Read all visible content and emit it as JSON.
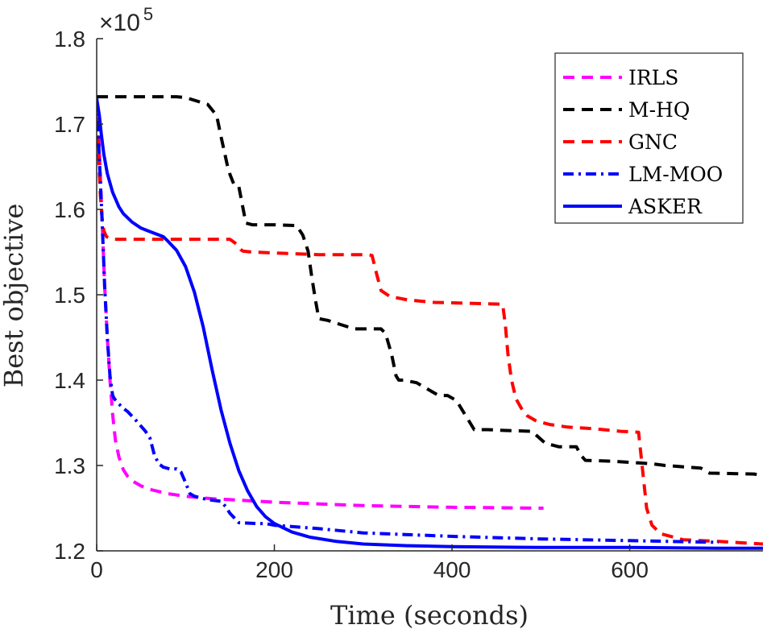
{
  "chart_data": {
    "type": "line",
    "title": "",
    "xlabel": "Time (seconds)",
    "ylabel": "Best objective",
    "xlim": [
      0,
      750
    ],
    "ylim": [
      120000,
      180000
    ],
    "xticks": [
      0,
      200,
      400,
      600
    ],
    "xtick_labels": [
      "0",
      "200",
      "400",
      "600"
    ],
    "yticks": [
      120000,
      130000,
      140000,
      150000,
      160000,
      170000,
      180000
    ],
    "ytick_labels": [
      "1.2",
      "1.3",
      "1.4",
      "1.5",
      "1.6",
      "1.7",
      "1.8"
    ],
    "y_multiplier": {
      "base": "×10",
      "exponent": "5"
    },
    "grid": false,
    "legend_position": "top-right",
    "series": [
      {
        "name": "IRLS",
        "color": "#ff00ff",
        "style": "dashed",
        "x": [
          0,
          3,
          6,
          9,
          12,
          15,
          18,
          21,
          25,
          30,
          35,
          40,
          50,
          60,
          80,
          100,
          130,
          150,
          200,
          300,
          400,
          503
        ],
        "y": [
          173000,
          167000,
          159000,
          151000,
          145000,
          140000,
          136000,
          133000,
          131000,
          129500,
          128700,
          128200,
          127600,
          127200,
          126700,
          126400,
          126100,
          126000,
          125700,
          125300,
          125100,
          125000
        ]
      },
      {
        "name": "M-HQ",
        "color": "#000000",
        "style": "dashed",
        "x": [
          0,
          90,
          100,
          125,
          135,
          140,
          147,
          150,
          155,
          160,
          165,
          168,
          175,
          200,
          225,
          232,
          238,
          242,
          246,
          250,
          260,
          275,
          290,
          320,
          325,
          332,
          337,
          340,
          345,
          360,
          385,
          395,
          405,
          415,
          418,
          425,
          440,
          460,
          490,
          505,
          520,
          540,
          545,
          550,
          580,
          610,
          625,
          640,
          680,
          690,
          740,
          750
        ],
        "y": [
          173200,
          173200,
          173100,
          172300,
          171000,
          168500,
          165200,
          164100,
          162800,
          162700,
          160000,
          158400,
          158200,
          158200,
          158100,
          157000,
          155100,
          152200,
          149500,
          147200,
          147000,
          146500,
          146000,
          146000,
          145500,
          143000,
          140500,
          140000,
          140000,
          139700,
          138200,
          138200,
          137600,
          135900,
          135400,
          134200,
          134200,
          134100,
          134000,
          132600,
          132200,
          132200,
          131200,
          130600,
          130500,
          130300,
          130200,
          130000,
          129700,
          129100,
          129000,
          128800
        ]
      },
      {
        "name": "GNC",
        "color": "#ff0000",
        "style": "dashed",
        "x": [
          0,
          2,
          4,
          6,
          8,
          11,
          15,
          20,
          40,
          80,
          150,
          158,
          162,
          165,
          175,
          200,
          250,
          290,
          305,
          310,
          315,
          320,
          330,
          350,
          380,
          420,
          457,
          460,
          463,
          467,
          472,
          478,
          485,
          495,
          510,
          530,
          560,
          590,
          610,
          615,
          619,
          625,
          635,
          660,
          700,
          750
        ],
        "y": [
          173000,
          167000,
          162000,
          159000,
          157500,
          156800,
          156600,
          156500,
          156500,
          156500,
          156500,
          155900,
          155300,
          155100,
          155000,
          154900,
          154700,
          154700,
          154700,
          154600,
          152500,
          150500,
          149800,
          149400,
          149100,
          149000,
          148900,
          146500,
          143000,
          140000,
          137800,
          136700,
          135800,
          135200,
          134800,
          134500,
          134300,
          134000,
          133900,
          129000,
          125000,
          123000,
          122000,
          121300,
          121100,
          120800
        ]
      },
      {
        "name": "LM-MOO",
        "color": "#0000ff",
        "style": "dashdot",
        "x": [
          0,
          3,
          6,
          9,
          12,
          15,
          18,
          20,
          25,
          30,
          35,
          45,
          55,
          60,
          65,
          70,
          75,
          82,
          90,
          95,
          100,
          105,
          110,
          125,
          140,
          145,
          150,
          160,
          180,
          190,
          200,
          250,
          300,
          400,
          500,
          600,
          700
        ],
        "y": [
          173000,
          166000,
          159000,
          151000,
          145000,
          140500,
          138200,
          137800,
          137200,
          136700,
          136300,
          135200,
          134000,
          133200,
          131200,
          130200,
          129800,
          129600,
          129600,
          129200,
          128000,
          126700,
          126400,
          126000,
          125800,
          125200,
          124400,
          123300,
          123200,
          123200,
          123000,
          122600,
          122100,
          121700,
          121400,
          121200,
          121000
        ]
      },
      {
        "name": "ASKER",
        "color": "#0000ff",
        "style": "solid",
        "x": [
          0,
          3,
          5,
          8,
          12,
          18,
          25,
          30,
          40,
          50,
          60,
          75,
          80,
          90,
          100,
          110,
          120,
          130,
          140,
          150,
          160,
          170,
          180,
          190,
          200,
          220,
          240,
          270,
          300,
          350,
          400,
          500,
          600,
          700,
          750
        ],
        "y": [
          173000,
          171000,
          169000,
          166500,
          164200,
          162000,
          160300,
          159500,
          158500,
          157800,
          157400,
          156800,
          156300,
          155200,
          153300,
          150300,
          146200,
          141200,
          136500,
          132600,
          129400,
          127000,
          125200,
          124000,
          123200,
          122200,
          121600,
          121100,
          120800,
          120600,
          120500,
          120400,
          120400,
          120300,
          120300
        ]
      }
    ]
  }
}
